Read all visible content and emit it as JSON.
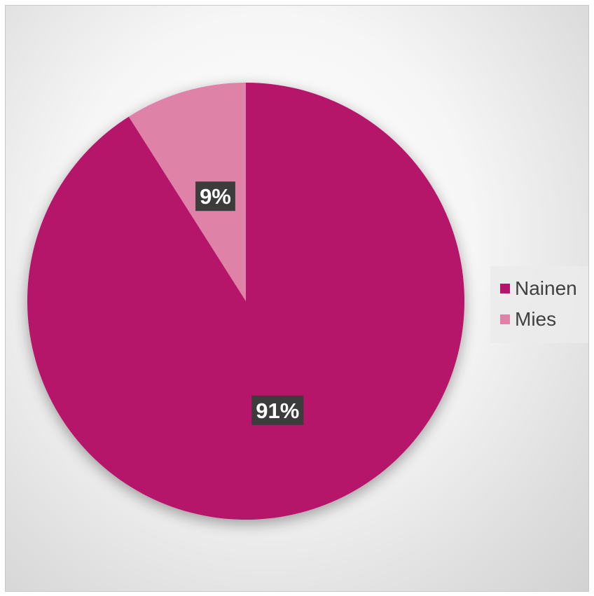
{
  "chart_data": {
    "type": "pie",
    "categories": [
      "Nainen",
      "Mies"
    ],
    "values": [
      91,
      9
    ],
    "labels": [
      "91%",
      "9%"
    ],
    "colors": [
      "#b5146b",
      "#de82a7"
    ],
    "legend": {
      "position": "right",
      "entries": [
        "Nainen",
        "Mies"
      ]
    },
    "start_angle": "top",
    "direction": "clockwise"
  }
}
